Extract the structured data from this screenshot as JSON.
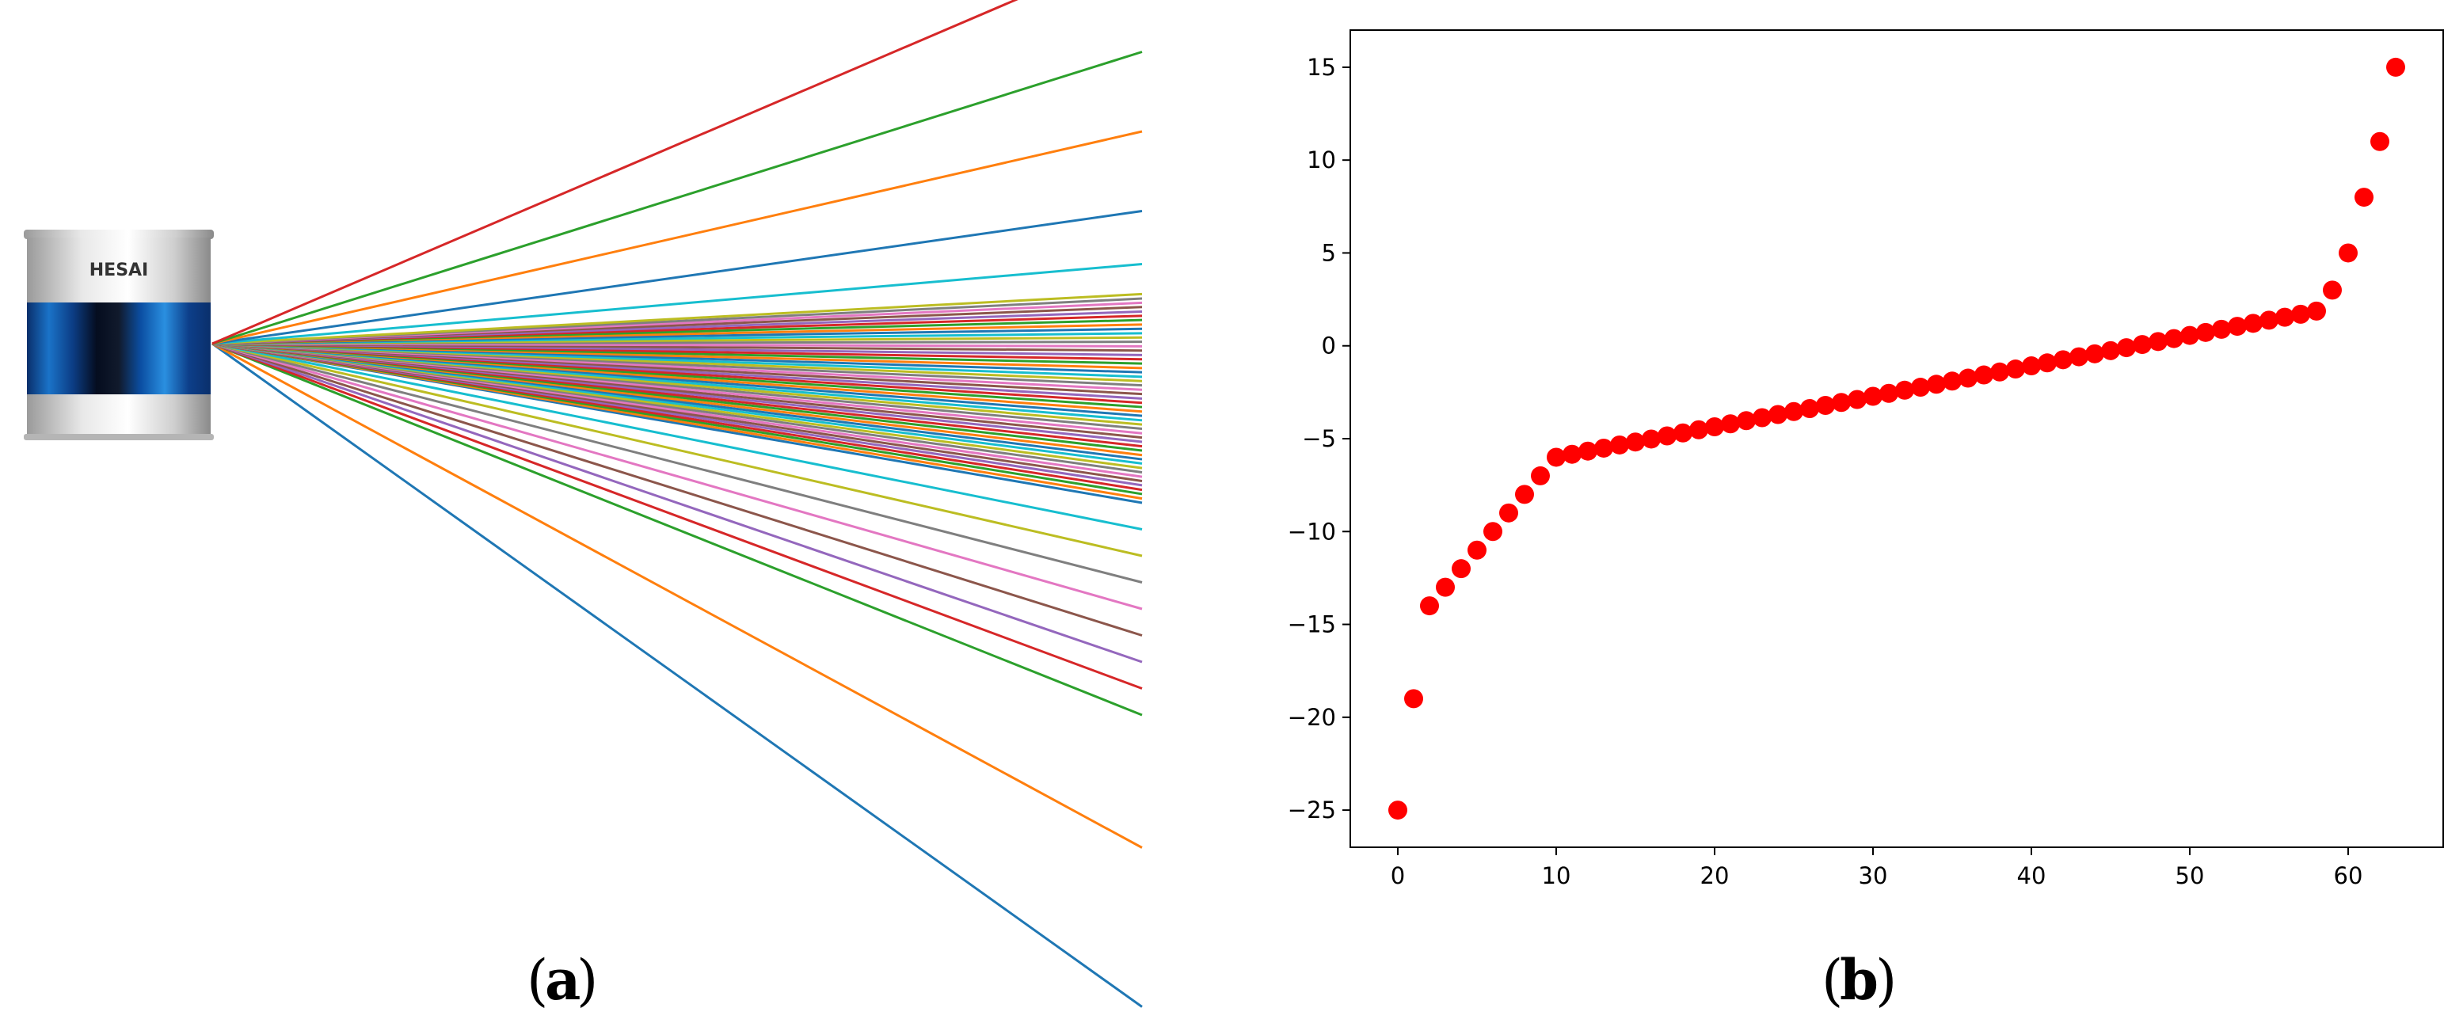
{
  "captions": {
    "a": "a",
    "b": "b",
    "open_paren": "(",
    "close_paren": ")"
  },
  "device": {
    "brand": "HESAI"
  },
  "colors": {
    "scatter_point": "#ff0000",
    "beam_palette": [
      "#1f77b4",
      "#ff7f0e",
      "#2ca02c",
      "#d62728",
      "#9467bd",
      "#8c564b",
      "#e377c2",
      "#7f7f7f",
      "#bcbd22",
      "#17becf"
    ]
  },
  "chart_data": [
    {
      "type": "line",
      "panel": "a",
      "description_free": true,
      "title": "",
      "xlabel": "",
      "ylabel": "",
      "beam_count": 64,
      "beam_angles_deg": [
        -25.0,
        -19.0,
        -14.0,
        -13.0,
        -12.0,
        -11.0,
        -10.0,
        -9.0,
        -8.0,
        -7.0,
        -6.0,
        -5.84,
        -5.67,
        -5.51,
        -5.34,
        -5.18,
        -5.02,
        -4.85,
        -4.69,
        -4.52,
        -4.36,
        -4.2,
        -4.03,
        -3.87,
        -3.7,
        -3.54,
        -3.38,
        -3.21,
        -3.05,
        -2.89,
        -2.72,
        -2.56,
        -2.39,
        -2.23,
        -2.07,
        -1.9,
        -1.74,
        -1.57,
        -1.41,
        -1.25,
        -1.08,
        -0.92,
        -0.75,
        -0.59,
        -0.43,
        -0.26,
        -0.1,
        0.07,
        0.23,
        0.39,
        0.56,
        0.72,
        0.89,
        1.05,
        1.21,
        1.38,
        1.54,
        1.7,
        1.87,
        3.0,
        5.0,
        8.0,
        11.0,
        15.0
      ],
      "axes_visible": false
    },
    {
      "type": "scatter",
      "panel": "b",
      "title": "",
      "xlabel": "",
      "ylabel": "",
      "xlim": [
        -3,
        66
      ],
      "ylim": [
        -27,
        17
      ],
      "xticks": [
        0,
        10,
        20,
        30,
        40,
        50,
        60
      ],
      "yticks": [
        -25,
        -20,
        -15,
        -10,
        -5,
        0,
        5,
        10,
        15
      ],
      "grid": false,
      "series": [
        {
          "color": "#ff0000",
          "x": [
            0,
            1,
            2,
            3,
            4,
            5,
            6,
            7,
            8,
            9,
            10,
            11,
            12,
            13,
            14,
            15,
            16,
            17,
            18,
            19,
            20,
            21,
            22,
            23,
            24,
            25,
            26,
            27,
            28,
            29,
            30,
            31,
            32,
            33,
            34,
            35,
            36,
            37,
            38,
            39,
            40,
            41,
            42,
            43,
            44,
            45,
            46,
            47,
            48,
            49,
            50,
            51,
            52,
            53,
            54,
            55,
            56,
            57,
            58,
            59,
            60,
            61,
            62,
            63
          ],
          "y": [
            -25.0,
            -19.0,
            -14.0,
            -13.0,
            -12.0,
            -11.0,
            -10.0,
            -9.0,
            -8.0,
            -7.0,
            -6.0,
            -5.84,
            -5.67,
            -5.51,
            -5.34,
            -5.18,
            -5.02,
            -4.85,
            -4.69,
            -4.52,
            -4.36,
            -4.2,
            -4.03,
            -3.87,
            -3.7,
            -3.54,
            -3.38,
            -3.21,
            -3.05,
            -2.89,
            -2.72,
            -2.56,
            -2.39,
            -2.23,
            -2.07,
            -1.9,
            -1.74,
            -1.57,
            -1.41,
            -1.25,
            -1.08,
            -0.92,
            -0.75,
            -0.59,
            -0.43,
            -0.26,
            -0.1,
            0.07,
            0.23,
            0.39,
            0.56,
            0.72,
            0.89,
            1.05,
            1.21,
            1.38,
            1.54,
            1.7,
            1.87,
            3.0,
            5.0,
            8.0,
            11.0,
            15.0
          ]
        }
      ]
    }
  ]
}
